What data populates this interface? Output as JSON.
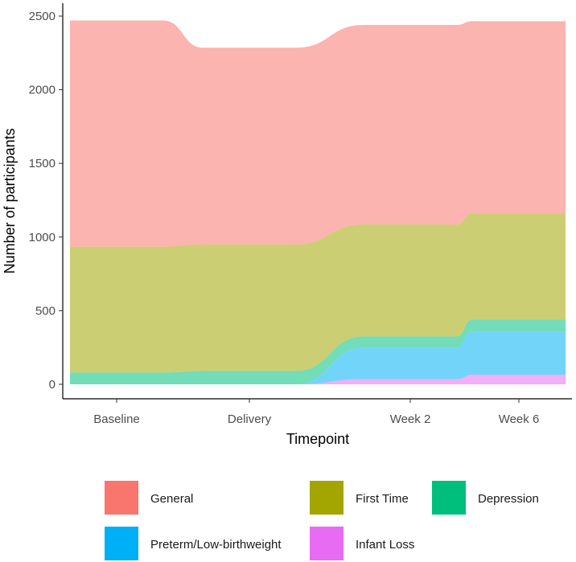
{
  "chart_data": {
    "type": "area",
    "subtype": "alluvial",
    "xlabel": "Timepoint",
    "ylabel": "Number of participants",
    "categories": [
      "Baseline",
      "Delivery",
      "Week 2",
      "Week 6"
    ],
    "ylim": [
      0,
      2550
    ],
    "yticks": [
      0,
      500,
      1000,
      1500,
      2000,
      2500
    ],
    "grid": false,
    "legend_position": "bottom",
    "order_bottom_to_top": [
      "Infant Loss",
      "Preterm/Low-birthweight",
      "Depression",
      "First Time",
      "General"
    ],
    "series": [
      {
        "name": "General",
        "color": "#F8766D",
        "values": [
          1535,
          1335,
          1355,
          1305
        ]
      },
      {
        "name": "First Time",
        "color": "#A3A500",
        "values": [
          855,
          860,
          760,
          720
        ]
      },
      {
        "name": "Depression",
        "color": "#00BF7D",
        "values": [
          80,
          90,
          75,
          80
        ]
      },
      {
        "name": "Preterm/Low-birthweight",
        "color": "#00B0F6",
        "values": [
          0,
          0,
          215,
          295
        ]
      },
      {
        "name": "Infant Loss",
        "color": "#E76BF3",
        "values": [
          0,
          0,
          35,
          65
        ]
      }
    ],
    "legend": [
      {
        "label": "General",
        "color": "#F8766D"
      },
      {
        "label": "First Time",
        "color": "#A3A500"
      },
      {
        "label": "Depression",
        "color": "#00BF7D"
      },
      {
        "label": "Preterm/Low-birthweight",
        "color": "#00B0F6"
      },
      {
        "label": "Infant Loss",
        "color": "#E76BF3"
      }
    ]
  }
}
